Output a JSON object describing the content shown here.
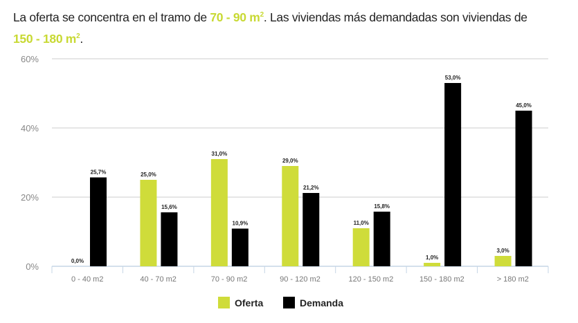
{
  "headline": {
    "p1": "La oferta se concentra en el tramo de ",
    "h1": "70 - 90 m",
    "h1sup": "2",
    "p2": ". Las viviendas más demandadas son viviendas de ",
    "h2": "150 - 180 m",
    "h2sup": "2",
    "p3": "."
  },
  "colors": {
    "oferta": "#cfdc3a",
    "demanda": "#000000",
    "highlight": "#c8d933"
  },
  "chart_data": {
    "type": "bar",
    "categories": [
      "0 - 40 m2",
      "40 - 70 m2",
      "70 - 90 m2",
      "90 - 120 m2",
      "120 - 150 m2",
      "150 - 180 m2",
      "> 180 m2"
    ],
    "series": [
      {
        "name": "Oferta",
        "values": [
          0.0,
          25.0,
          31.0,
          29.0,
          11.0,
          1.0,
          3.0
        ],
        "labels": [
          "0,0%",
          "25,0%",
          "31,0%",
          "29,0%",
          "11,0%",
          "1,0%",
          "3,0%"
        ]
      },
      {
        "name": "Demanda",
        "values": [
          25.7,
          15.6,
          10.9,
          21.2,
          15.8,
          53.0,
          45.0
        ],
        "labels": [
          "25,7%",
          "15,6%",
          "10,9%",
          "21,2%",
          "15,8%",
          "53,0%",
          "45,0%"
        ]
      }
    ],
    "yticks": [
      "0%",
      "20%",
      "40%",
      "60%"
    ],
    "ylim": [
      0,
      60
    ],
    "grid": true,
    "legend": "bottom"
  }
}
